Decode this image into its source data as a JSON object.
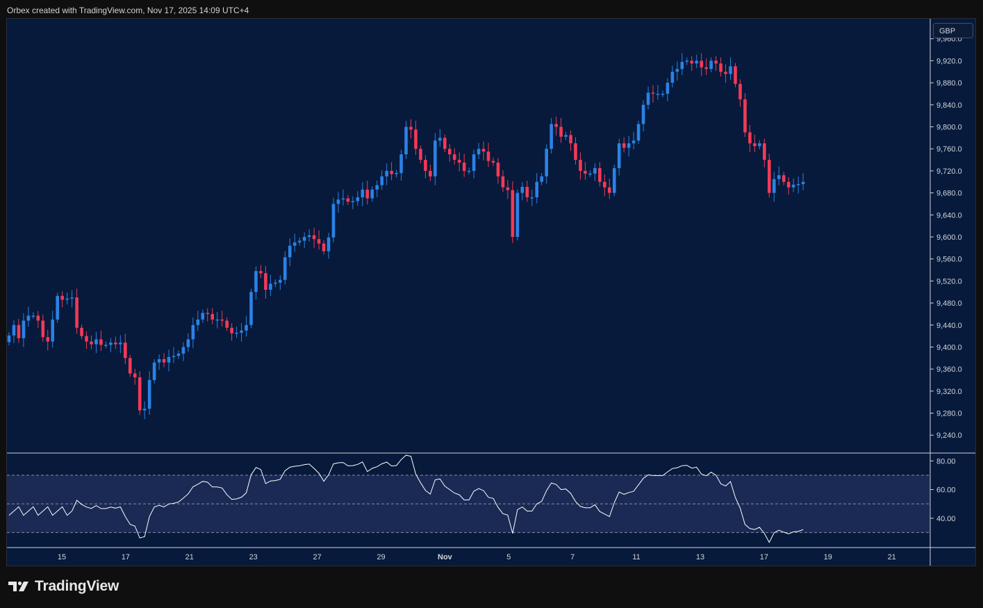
{
  "header": {
    "attribution": "Orbex created with TradingView.com, Nov 17, 2025 14:09 UTC+4"
  },
  "price_axis": {
    "currency": "GBP"
  },
  "brand": {
    "name": "TradingView",
    "logo_icon": "tradingview-logo-icon"
  },
  "colors": {
    "background": "#071a3b",
    "up": "#2b82e5",
    "down": "#f23a56",
    "rsi_line": "#ffffff",
    "rsi_band": "#1a2a55"
  },
  "chart_data": [
    {
      "type": "candlestick",
      "y_ticks": [
        "9,960.0",
        "9,920.0",
        "9,880.0",
        "9,840.0",
        "9,800.0",
        "9,760.0",
        "9,720.0",
        "9,680.0",
        "9,640.0",
        "9,600.0",
        "9,560.0",
        "9,520.0",
        "9,480.0",
        "9,440.0",
        "9,400.0",
        "9,360.0",
        "9,320.0",
        "9,280.0",
        "9,240.0"
      ],
      "ylim": [
        9210,
        9995
      ],
      "x_ticks": [
        "15",
        "17",
        "21",
        "23",
        "27",
        "29",
        "Nov",
        "5",
        "7",
        "11",
        "13",
        "17",
        "19",
        "21"
      ],
      "closes": [
        9421,
        9440,
        9416,
        9448,
        9457,
        9457,
        9448,
        9418,
        9410,
        9450,
        9493,
        9486,
        9488,
        9490,
        9435,
        9420,
        9410,
        9405,
        9414,
        9404,
        9404,
        9408,
        9405,
        9408,
        9380,
        9352,
        9345,
        9285,
        9288,
        9340,
        9372,
        9378,
        9372,
        9382,
        9384,
        9388,
        9400,
        9414,
        9440,
        9450,
        9462,
        9460,
        9450,
        9450,
        9448,
        9435,
        9425,
        9426,
        9430,
        9440,
        9500,
        9538,
        9534,
        9504,
        9515,
        9517,
        9522,
        9563,
        9584,
        9590,
        9593,
        9600,
        9603,
        9596,
        9588,
        9574,
        9599,
        9660,
        9668,
        9670,
        9664,
        9665,
        9672,
        9686,
        9670,
        9686,
        9694,
        9710,
        9720,
        9714,
        9716,
        9750,
        9800,
        9795,
        9760,
        9740,
        9720,
        9710,
        9775,
        9780,
        9760,
        9750,
        9740,
        9735,
        9720,
        9720,
        9750,
        9760,
        9755,
        9738,
        9735,
        9710,
        9690,
        9685,
        9600,
        9680,
        9691,
        9672,
        9672,
        9700,
        9710,
        9760,
        9805,
        9800,
        9782,
        9785,
        9770,
        9740,
        9720,
        9715,
        9715,
        9725,
        9700,
        9690,
        9680,
        9725,
        9770,
        9762,
        9770,
        9775,
        9805,
        9840,
        9862,
        9860,
        9860,
        9860,
        9880,
        9900,
        9905,
        9918,
        9920,
        9915,
        9920,
        9908,
        9905,
        9920,
        9915,
        9900,
        9896,
        9910,
        9878,
        9850,
        9790,
        9770,
        9765,
        9770,
        9740,
        9680,
        9705,
        9712,
        9700,
        9690,
        9695,
        9696,
        9700
      ],
      "rsi": {
        "ylim": [
          20,
          85
        ],
        "y_ticks": [
          "80.00",
          "60.00",
          "40.00"
        ],
        "bands": {
          "upper": 70,
          "middle": 50,
          "lower": 30
        }
      }
    }
  ]
}
